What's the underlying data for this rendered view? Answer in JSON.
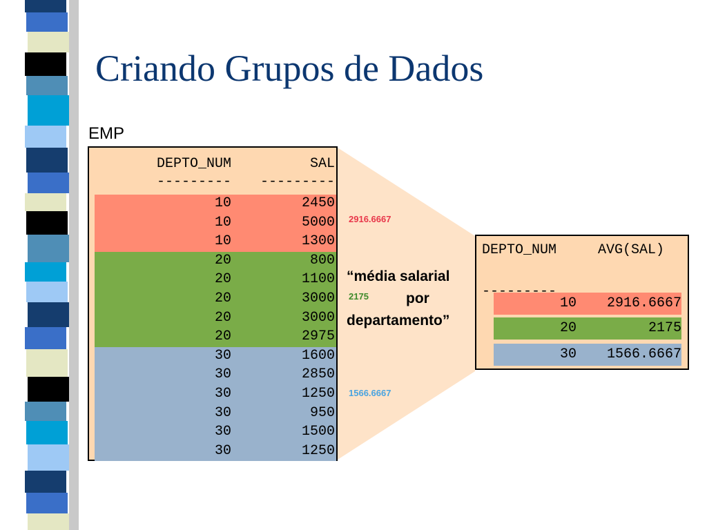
{
  "slide": {
    "title": "Criando Grupos de Dados",
    "table_label": "EMP"
  },
  "emp_table": {
    "header": [
      "DEPTO_NUM",
      "SAL"
    ],
    "separator": [
      "---------",
      "---------"
    ],
    "rows": [
      {
        "depto": "10",
        "sal": "2450"
      },
      {
        "depto": "10",
        "sal": "5000"
      },
      {
        "depto": "10",
        "sal": "1300"
      },
      {
        "depto": "20",
        "sal": "800"
      },
      {
        "depto": "20",
        "sal": "1100"
      },
      {
        "depto": "20",
        "sal": "3000"
      },
      {
        "depto": "20",
        "sal": "3000"
      },
      {
        "depto": "20",
        "sal": "2975"
      },
      {
        "depto": "30",
        "sal": "1600"
      },
      {
        "depto": "30",
        "sal": "2850"
      },
      {
        "depto": "30",
        "sal": "1250"
      },
      {
        "depto": "30",
        "sal": "950"
      },
      {
        "depto": "30",
        "sal": "1500"
      },
      {
        "depto": "30",
        "sal": "1250"
      }
    ]
  },
  "averages": {
    "g10": "2916.6667",
    "g20": "2175",
    "g30": "1566.6667"
  },
  "caption": {
    "line1": "“média salarial",
    "line2": "por",
    "line3": "departamento”"
  },
  "result_table": {
    "header": [
      "DEPTO_NUM",
      "AVG(SAL)"
    ],
    "separator": [
      "---------",
      "---------"
    ],
    "rows": [
      {
        "depto": "10",
        "avg": "2916.6667"
      },
      {
        "depto": "20",
        "avg": "2175"
      },
      {
        "depto": "30",
        "avg": "1566.6667"
      }
    ]
  },
  "colors": {
    "title": "#0c3770",
    "group10": "#ff8a72",
    "group20": "#7aac48",
    "group30": "#99b2cc",
    "table_bg": "#fed8b1",
    "avg10_text": "#e8364a",
    "avg20_text": "#3e8a2a",
    "avg30_text": "#4aa4e0"
  }
}
